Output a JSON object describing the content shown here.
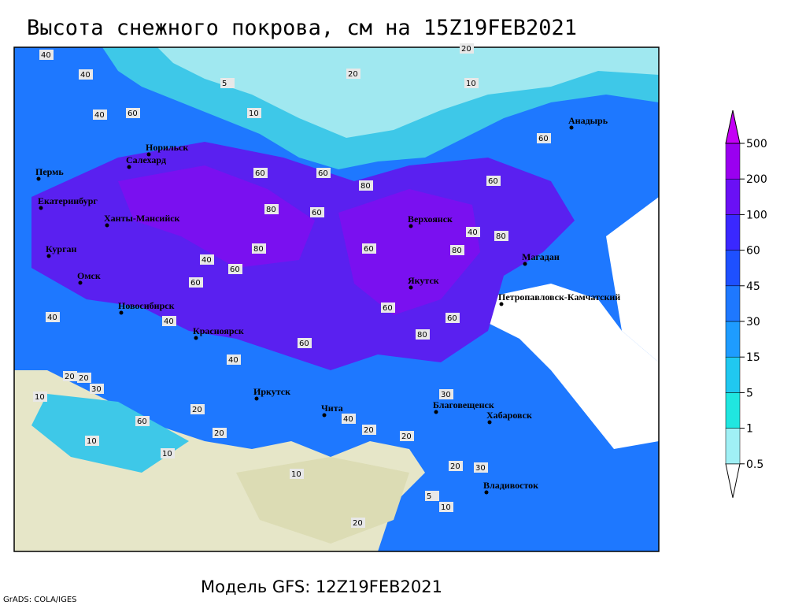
{
  "title": "Высота снежного покрова, см на 15Z19FEB2021",
  "footer": "Модель GFS: 12Z19FEB2021",
  "credit": "GrADS: COLA/IGES",
  "legend": {
    "levels": [
      0.5,
      1,
      5,
      15,
      30,
      45,
      60,
      100,
      200,
      500
    ],
    "colors": [
      "#ffffff",
      "#a0f0f5",
      "#20e6e0",
      "#20c8f0",
      "#1e9cff",
      "#1e78ff",
      "#1e50ff",
      "#3a28ff",
      "#6a10f5",
      "#9a00f0",
      "#c400f5"
    ]
  },
  "cities": [
    "Норильск",
    "Салехард",
    "Пермь",
    "Екатеринбург",
    "Ханты-Мансийск",
    "Курган",
    "Омск",
    "Новосибирск",
    "Красноярск",
    "Иркутск",
    "Чита",
    "Верхоянск",
    "Якутск",
    "Магадан",
    "Анадырь",
    "Петропавловск-Камчатский",
    "Благовещенск",
    "Хабаровск",
    "Владивосток"
  ],
  "contour_labels": [
    "40",
    "40",
    "20",
    "10",
    "20",
    "5",
    "10",
    "60",
    "40",
    "60",
    "80",
    "60",
    "60",
    "80",
    "60",
    "80",
    "60",
    "40",
    "60",
    "80",
    "60",
    "60",
    "40",
    "80",
    "60",
    "40",
    "80",
    "60",
    "40",
    "20",
    "10",
    "20",
    "30",
    "60",
    "20",
    "10",
    "40",
    "20",
    "30",
    "20",
    "10",
    "20",
    "5",
    "10",
    "20",
    "30",
    "10",
    "40",
    "60",
    "20"
  ]
}
